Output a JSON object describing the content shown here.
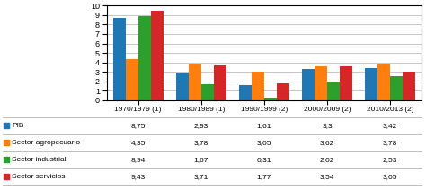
{
  "chart_data": {
    "type": "bar",
    "categories": [
      "1970/1979 (1)",
      "1980/1989 (1)",
      "1990/1999 (2)",
      "2000/2009 (2)",
      "2010/2013 (2)"
    ],
    "series": [
      {
        "name": "PIB",
        "values": [
          8.75,
          2.93,
          1.61,
          3.3,
          3.42
        ],
        "value_labels": [
          "8,75",
          "2,93",
          "1,61",
          "3,3",
          "3,42"
        ]
      },
      {
        "name": "Sector agropecuario",
        "values": [
          4.35,
          3.78,
          3.05,
          3.62,
          3.78
        ],
        "value_labels": [
          "4,35",
          "3,78",
          "3,05",
          "3,62",
          "3,78"
        ]
      },
      {
        "name": "Sector industrial",
        "values": [
          8.94,
          1.67,
          0.31,
          2.02,
          2.53
        ],
        "value_labels": [
          "8,94",
          "1,67",
          "0,31",
          "2,02",
          "2,53"
        ]
      },
      {
        "name": "Sector servicios",
        "values": [
          9.43,
          3.71,
          1.77,
          3.54,
          3.05
        ],
        "value_labels": [
          "9,43",
          "3,71",
          "1,77",
          "3,54",
          "3,05"
        ]
      }
    ],
    "ylim": [
      0,
      10
    ],
    "yticks": [
      0,
      1,
      2,
      3,
      4,
      5,
      6,
      7,
      8,
      9,
      10
    ],
    "grid": true
  }
}
